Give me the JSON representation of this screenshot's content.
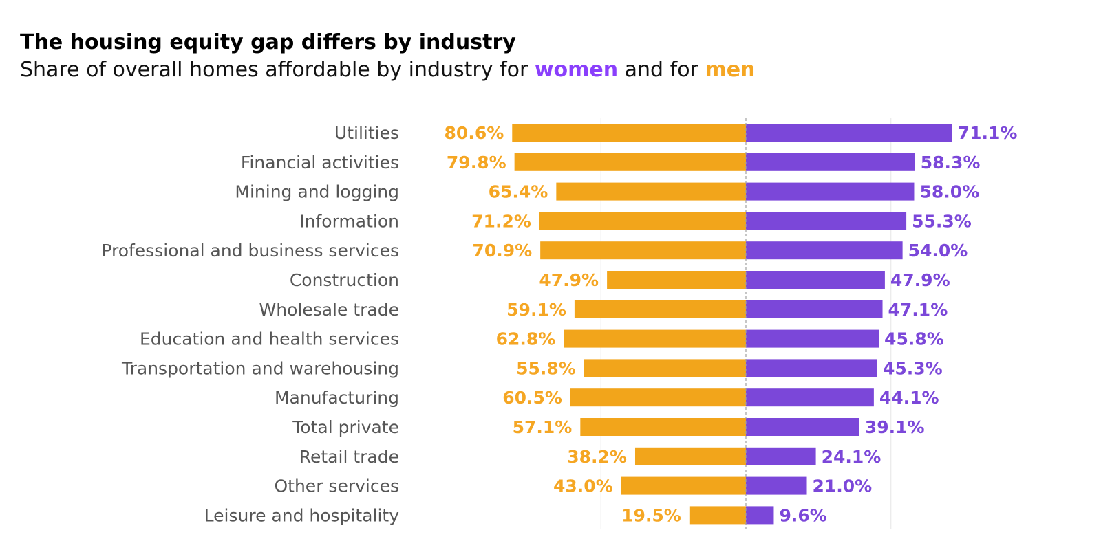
{
  "header": {
    "title": "The housing equity gap differs by industry",
    "subtitle_prefix": "Share of overall homes affordable by industry for ",
    "subtitle_women": "women",
    "subtitle_middle": " and for ",
    "subtitle_men": "men"
  },
  "colors": {
    "women": "#7b47d9",
    "men": "#f2a51b",
    "women_text": "#8a3ffc",
    "men_text": "#f5a623",
    "label": "#555555",
    "grid": "#e6e6e6",
    "center": "#a0a0a0"
  },
  "chart_data": {
    "type": "bar",
    "orientation": "horizontal-diverging",
    "categories": [
      "Utilities",
      "Financial activities",
      "Mining and logging",
      "Information",
      "Professional and business services",
      "Construction",
      "Wholesale trade",
      "Education and health services",
      "Transportation and warehousing",
      "Manufacturing",
      "Total private",
      "Retail trade",
      "Other services",
      "Leisure and hospitality"
    ],
    "series": [
      {
        "name": "women",
        "side": "right",
        "values": [
          71.1,
          58.3,
          58.0,
          55.3,
          54.0,
          47.9,
          47.1,
          45.8,
          45.3,
          44.1,
          39.1,
          24.1,
          21.0,
          9.6
        ],
        "labels": [
          "71.1%",
          "58.3%",
          "58.0%",
          "55.3%",
          "54.0%",
          "47.9%",
          "47.1%",
          "45.8%",
          "45.3%",
          "44.1%",
          "39.1%",
          "24.1%",
          "21.0%",
          "9.6%"
        ]
      },
      {
        "name": "men",
        "side": "left",
        "values": [
          80.6,
          79.8,
          65.4,
          71.2,
          70.9,
          47.9,
          59.1,
          62.8,
          55.8,
          60.5,
          57.1,
          38.2,
          43.0,
          19.5
        ],
        "labels": [
          "80.6%",
          "79.8%",
          "65.4%",
          "71.2%",
          "70.9%",
          "47.9%",
          "59.1%",
          "62.8%",
          "55.8%",
          "60.5%",
          "57.1%",
          "38.2%",
          "43.0%",
          "19.5%"
        ]
      }
    ],
    "xlim": [
      -100,
      100
    ],
    "grid": true,
    "title": "The housing equity gap differs by industry",
    "xlabel": "",
    "ylabel": ""
  }
}
